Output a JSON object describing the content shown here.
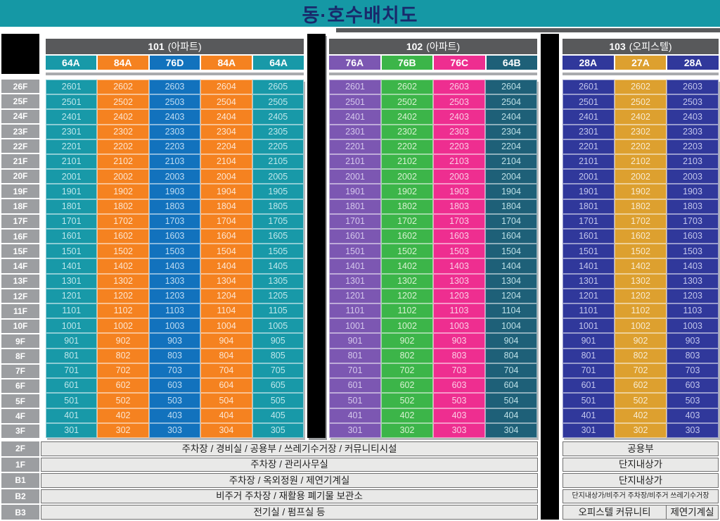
{
  "title": "동·호수배치도",
  "colors": {
    "titleBar": "#1598A5",
    "titleText": "#19296B",
    "buildingNameBar": "#58595B",
    "floorLabel": "#9C9EA1",
    "separatorBlack": "#000000",
    "facilityRowBg": "#E9E9E8"
  },
  "floors": [
    "26F",
    "25F",
    "24F",
    "23F",
    "22F",
    "21F",
    "20F",
    "19F",
    "18F",
    "17F",
    "16F",
    "15F",
    "14F",
    "13F",
    "12F",
    "11F",
    "10F",
    "9F",
    "8F",
    "7F",
    "6F",
    "5F",
    "4F",
    "3F"
  ],
  "basementFloors": [
    "2F",
    "1F",
    "B1",
    "B2",
    "B3"
  ],
  "buildings": [
    {
      "id": "101",
      "type": "(아파트)",
      "columns": [
        {
          "label": "64A",
          "color": "#1899A8",
          "textColor": "#BFE7EB"
        },
        {
          "label": "84A",
          "color": "#F58220",
          "textColor": "#FDE6D2"
        },
        {
          "label": "76D",
          "color": "#1272BD",
          "textColor": "#BFDCF2"
        },
        {
          "label": "84A",
          "color": "#F58220",
          "textColor": "#FDE6D2"
        },
        {
          "label": "64A",
          "color": "#1899A8",
          "textColor": "#BFE7EB"
        }
      ],
      "units": [
        [
          "2601",
          "2602",
          "2603",
          "2604",
          "2605"
        ],
        [
          "2501",
          "2502",
          "2503",
          "2504",
          "2505"
        ],
        [
          "2401",
          "2402",
          "2403",
          "2404",
          "2405"
        ],
        [
          "2301",
          "2302",
          "2303",
          "2304",
          "2305"
        ],
        [
          "2201",
          "2202",
          "2203",
          "2204",
          "2205"
        ],
        [
          "2101",
          "2102",
          "2103",
          "2104",
          "2105"
        ],
        [
          "2001",
          "2002",
          "2003",
          "2004",
          "2005"
        ],
        [
          "1901",
          "1902",
          "1903",
          "1904",
          "1905"
        ],
        [
          "1801",
          "1802",
          "1803",
          "1804",
          "1805"
        ],
        [
          "1701",
          "1702",
          "1703",
          "1704",
          "1705"
        ],
        [
          "1601",
          "1602",
          "1603",
          "1604",
          "1605"
        ],
        [
          "1501",
          "1502",
          "1503",
          "1504",
          "1505"
        ],
        [
          "1401",
          "1402",
          "1403",
          "1404",
          "1405"
        ],
        [
          "1301",
          "1302",
          "1303",
          "1304",
          "1305"
        ],
        [
          "1201",
          "1202",
          "1203",
          "1204",
          "1205"
        ],
        [
          "1101",
          "1102",
          "1103",
          "1104",
          "1105"
        ],
        [
          "1001",
          "1002",
          "1003",
          "1004",
          "1005"
        ],
        [
          "901",
          "902",
          "903",
          "904",
          "905"
        ],
        [
          "801",
          "802",
          "803",
          "804",
          "805"
        ],
        [
          "701",
          "702",
          "703",
          "704",
          "705"
        ],
        [
          "601",
          "602",
          "603",
          "604",
          "605"
        ],
        [
          "501",
          "502",
          "503",
          "504",
          "505"
        ],
        [
          "401",
          "402",
          "403",
          "404",
          "405"
        ],
        [
          "301",
          "302",
          "303",
          "304",
          "305"
        ]
      ]
    },
    {
      "id": "102",
      "type": "(아파트)",
      "columns": [
        {
          "label": "76A",
          "color": "#7C57B2",
          "textColor": "#D5C8EC"
        },
        {
          "label": "76B",
          "color": "#3CB549",
          "textColor": "#D9F2D2"
        },
        {
          "label": "76C",
          "color": "#EE2E90",
          "textColor": "#FBCFE5"
        },
        {
          "label": "64B",
          "color": "#1E6078",
          "textColor": "#BEE0E6"
        }
      ],
      "units": [
        [
          "2601",
          "2602",
          "2603",
          "2604"
        ],
        [
          "2501",
          "2502",
          "2503",
          "2504"
        ],
        [
          "2401",
          "2402",
          "2403",
          "2404"
        ],
        [
          "2301",
          "2302",
          "2303",
          "2304"
        ],
        [
          "2201",
          "2202",
          "2203",
          "2204"
        ],
        [
          "2101",
          "2102",
          "2103",
          "2104"
        ],
        [
          "2001",
          "2002",
          "2003",
          "2004"
        ],
        [
          "1901",
          "1902",
          "1903",
          "1904"
        ],
        [
          "1801",
          "1802",
          "1803",
          "1804"
        ],
        [
          "1701",
          "1702",
          "1703",
          "1704"
        ],
        [
          "1601",
          "1602",
          "1603",
          "1604"
        ],
        [
          "1501",
          "1502",
          "1503",
          "1504"
        ],
        [
          "1401",
          "1402",
          "1403",
          "1404"
        ],
        [
          "1301",
          "1302",
          "1303",
          "1304"
        ],
        [
          "1201",
          "1202",
          "1203",
          "1204"
        ],
        [
          "1101",
          "1102",
          "1103",
          "1104"
        ],
        [
          "1001",
          "1002",
          "1003",
          "1004"
        ],
        [
          "901",
          "902",
          "903",
          "904"
        ],
        [
          "801",
          "802",
          "803",
          "804"
        ],
        [
          "701",
          "702",
          "703",
          "704"
        ],
        [
          "601",
          "602",
          "603",
          "604"
        ],
        [
          "501",
          "502",
          "503",
          "504"
        ],
        [
          "401",
          "402",
          "403",
          "404"
        ],
        [
          "301",
          "302",
          "303",
          "304"
        ]
      ]
    },
    {
      "id": "103",
      "type": "(오피스텔)",
      "columns": [
        {
          "label": "28A",
          "color": "#30389B",
          "textColor": "#C3C6EC"
        },
        {
          "label": "27A",
          "color": "#DDA02F",
          "textColor": "#F8ECD3"
        },
        {
          "label": "28A",
          "color": "#30389B",
          "textColor": "#C3C6EC"
        }
      ],
      "units": [
        [
          "2601",
          "2602",
          "2603"
        ],
        [
          "2501",
          "2502",
          "2503"
        ],
        [
          "2401",
          "2402",
          "2403"
        ],
        [
          "2301",
          "2302",
          "2303"
        ],
        [
          "2201",
          "2202",
          "2203"
        ],
        [
          "2101",
          "2102",
          "2103"
        ],
        [
          "2001",
          "2002",
          "2003"
        ],
        [
          "1901",
          "1902",
          "1903"
        ],
        [
          "1801",
          "1802",
          "1803"
        ],
        [
          "1701",
          "1702",
          "1703"
        ],
        [
          "1601",
          "1602",
          "1603"
        ],
        [
          "1501",
          "1502",
          "1503"
        ],
        [
          "1401",
          "1402",
          "1403"
        ],
        [
          "1301",
          "1302",
          "1303"
        ],
        [
          "1201",
          "1202",
          "1203"
        ],
        [
          "1101",
          "1102",
          "1103"
        ],
        [
          "1001",
          "1002",
          "1003"
        ],
        [
          "901",
          "902",
          "903"
        ],
        [
          "801",
          "802",
          "803"
        ],
        [
          "701",
          "702",
          "703"
        ],
        [
          "601",
          "602",
          "603"
        ],
        [
          "501",
          "502",
          "503"
        ],
        [
          "401",
          "402",
          "403"
        ],
        [
          "301",
          "302",
          "303"
        ]
      ]
    }
  ],
  "footerLeft": [
    "주차장 / 경비실 / 공용부 / 쓰레기수거장 / 커뮤니티시설",
    "주차장 / 관리사무실",
    "주차장 / 옥외정원 / 제연기계실",
    "비주거 주차장 / 재활용 폐기물 보관소",
    "전기실 / 펌프실 등"
  ],
  "footerRight": [
    {
      "text": "공용부"
    },
    {
      "text": "단지내상가"
    },
    {
      "text": "단지내상가"
    },
    {
      "text": "단지내상가/비주거 주차장/비주거 쓰레기수거장",
      "small": true
    },
    {
      "cells": [
        "오피스텔 커뮤니티",
        "제연기계실"
      ]
    }
  ]
}
